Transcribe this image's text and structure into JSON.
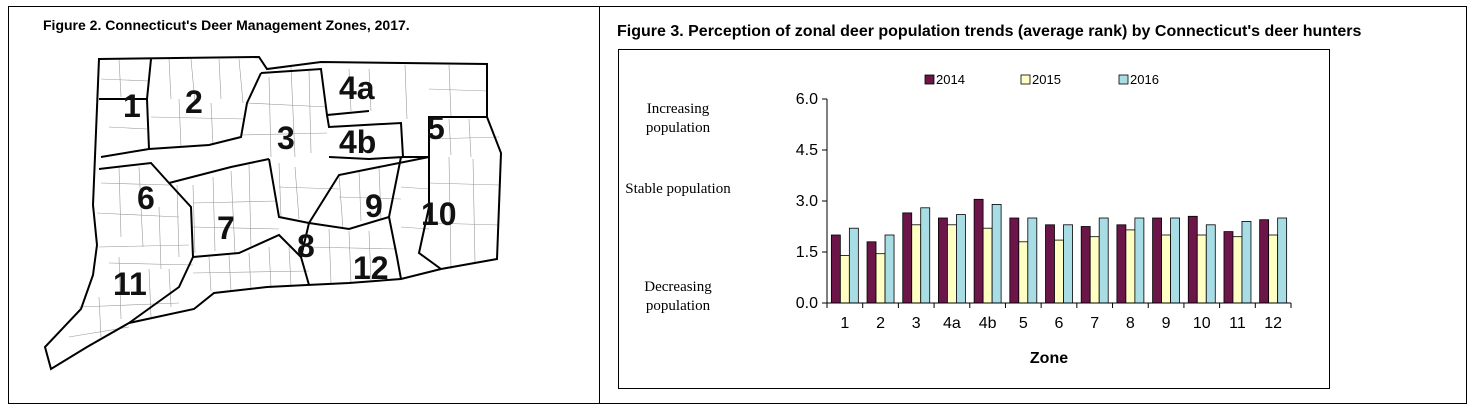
{
  "map": {
    "title": "Figure 2.  Connecticut's Deer Management Zones, 2017.",
    "zone_labels": [
      "1",
      "2",
      "3",
      "4a",
      "4b",
      "5",
      "6",
      "7",
      "8",
      "9",
      "10",
      "11",
      "12"
    ]
  },
  "chart_panel": {
    "title": "Figure 3.  Perception of zonal deer population trends (average rank) by Connecticut's deer hunters",
    "side_labels": {
      "increasing": "Increasing population",
      "stable": "Stable population",
      "decreasing": "Decreasing population"
    }
  },
  "chart_data": {
    "type": "bar",
    "title": "Figure 3.  Perception of zonal deer population trends (average rank) by Connecticut's deer hunters",
    "xlabel": "Zone",
    "ylabel": "",
    "ylim": [
      0,
      6
    ],
    "yticks": [
      "0.0",
      "1.5",
      "3.0",
      "4.5",
      "6.0"
    ],
    "grid": false,
    "legend_position": "top",
    "categories": [
      "1",
      "2",
      "3",
      "4a",
      "4b",
      "5",
      "6",
      "7",
      "8",
      "9",
      "10",
      "11",
      "12"
    ],
    "series": [
      {
        "name": "2014",
        "color": "#6b1548",
        "values": [
          2.0,
          1.8,
          2.65,
          2.5,
          3.05,
          2.5,
          2.3,
          2.25,
          2.3,
          2.5,
          2.55,
          2.1,
          2.45
        ]
      },
      {
        "name": "2015",
        "color": "#ffffc4",
        "values": [
          1.4,
          1.45,
          2.3,
          2.3,
          2.2,
          1.8,
          1.85,
          1.95,
          2.15,
          2.0,
          2.0,
          1.95,
          2.0
        ]
      },
      {
        "name": "2016",
        "color": "#a8dde6",
        "values": [
          2.2,
          2.0,
          2.8,
          2.6,
          2.9,
          2.5,
          2.3,
          2.5,
          2.5,
          2.5,
          2.3,
          2.4,
          2.5
        ]
      }
    ]
  }
}
